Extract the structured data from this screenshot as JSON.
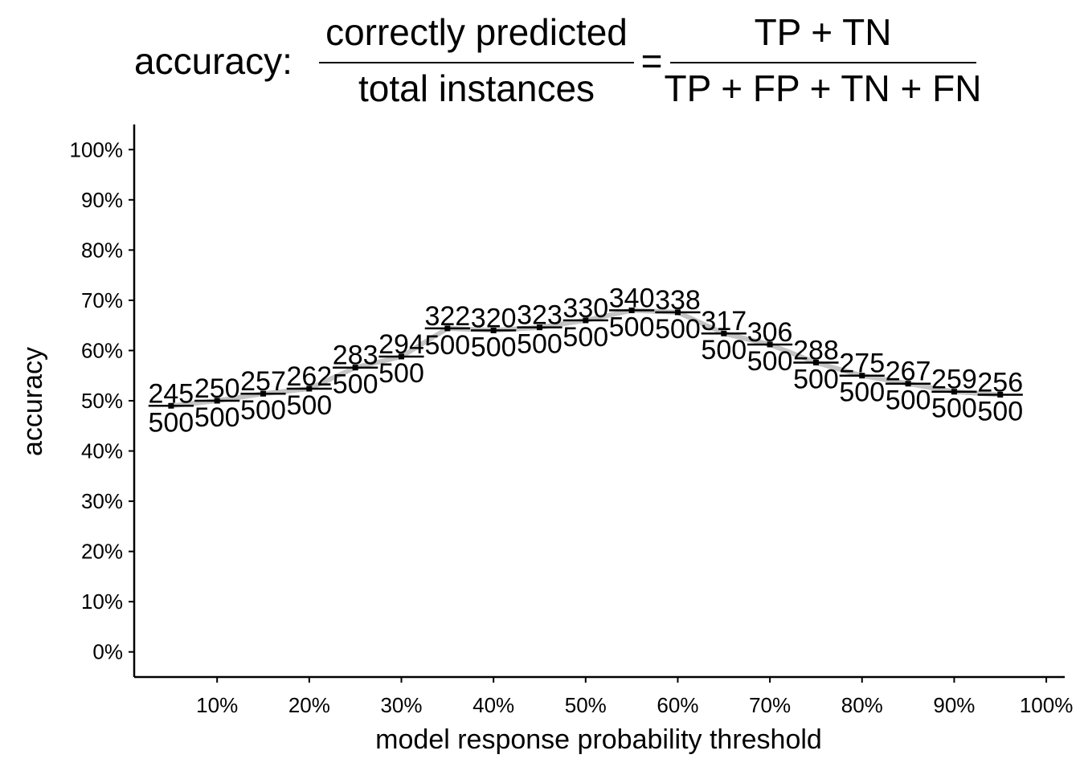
{
  "title": {
    "prefix": "accuracy:",
    "numerator_words": "correctly predicted",
    "denominator_words": "total instances",
    "equals": "=",
    "numerator_terms": "TP + TN",
    "denominator_terms": "TP + FP + TN + FN"
  },
  "chart_data": {
    "type": "line",
    "title": "accuracy: correctly predicted / total instances = (TP + TN) / (TP + FP + TN + FN)",
    "xlabel": "model response probability threshold",
    "ylabel": "accuracy",
    "x_ticks": [
      "10%",
      "20%",
      "30%",
      "40%",
      "50%",
      "60%",
      "70%",
      "80%",
      "90%",
      "100%"
    ],
    "y_ticks": [
      "0%",
      "10%",
      "20%",
      "30%",
      "40%",
      "50%",
      "60%",
      "70%",
      "80%",
      "90%",
      "100%"
    ],
    "xlim": [
      0.01,
      1.02
    ],
    "ylim": [
      -0.05,
      1.05
    ],
    "grid": false,
    "legend": "none",
    "colors": {
      "line": "#bebebe",
      "step": "#000000",
      "point": "#000000"
    },
    "x": [
      0.05,
      0.1,
      0.15,
      0.2,
      0.25,
      0.3,
      0.35,
      0.4,
      0.45,
      0.5,
      0.55,
      0.6,
      0.65,
      0.7,
      0.75,
      0.8,
      0.85,
      0.9,
      0.95
    ],
    "correct": [
      245,
      250,
      257,
      262,
      283,
      294,
      322,
      320,
      323,
      330,
      340,
      338,
      317,
      306,
      288,
      275,
      267,
      259,
      256
    ],
    "total": [
      500,
      500,
      500,
      500,
      500,
      500,
      500,
      500,
      500,
      500,
      500,
      500,
      500,
      500,
      500,
      500,
      500,
      500,
      500
    ]
  }
}
